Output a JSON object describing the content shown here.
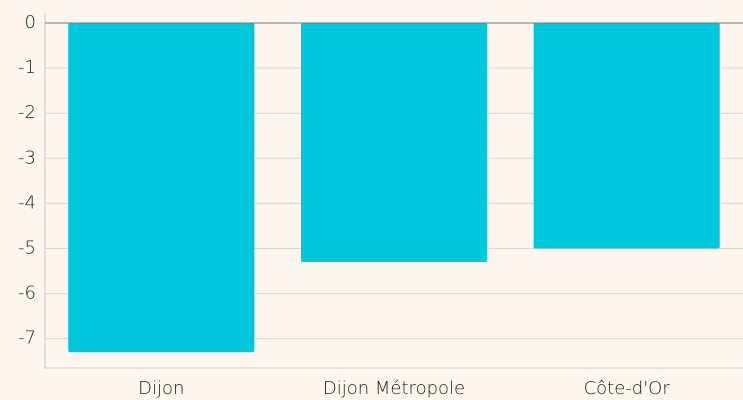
{
  "chart_data": {
    "type": "bar",
    "categories": [
      "Dijon",
      "Dijon Métropole",
      "Côte-d'Or"
    ],
    "values": [
      -7.3,
      -5.3,
      -5.0
    ],
    "color": "#00c8dc",
    "ylim": [
      -7.65,
      0
    ],
    "yticks": [
      0,
      -1,
      -2,
      -3,
      -4,
      -5,
      -6,
      -7
    ],
    "grid": true
  }
}
